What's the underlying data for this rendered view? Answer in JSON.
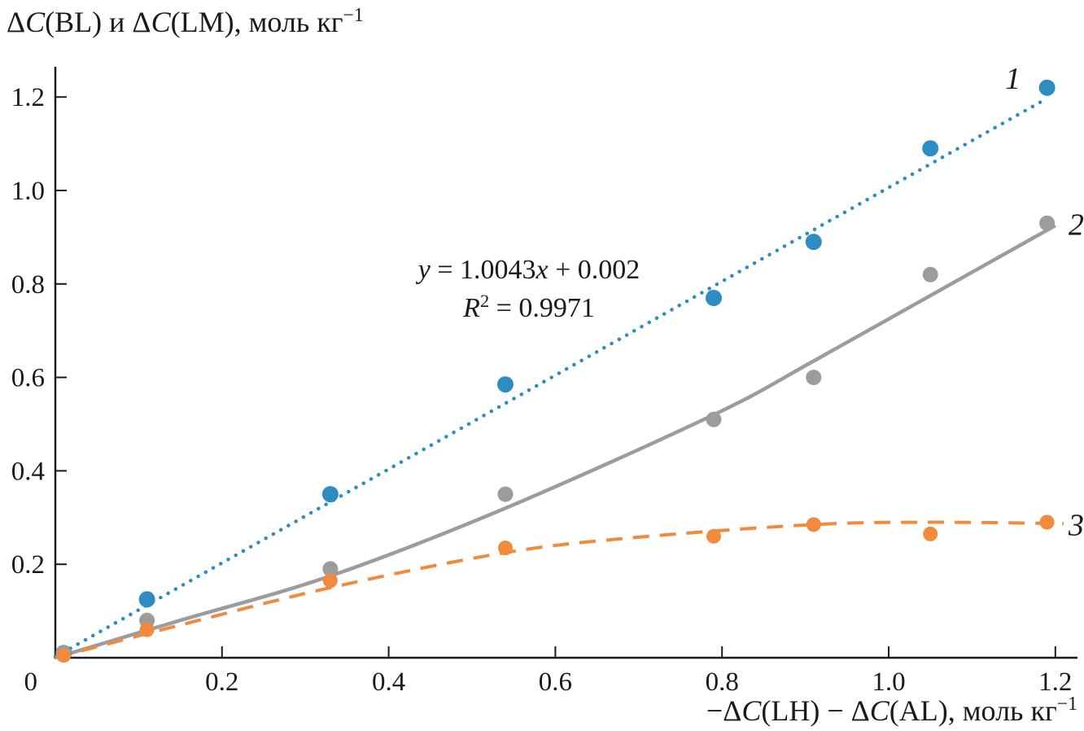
{
  "page": {
    "background": "#ffffff",
    "text_color": "#1a1a1a"
  },
  "chart_data": {
    "type": "scatter",
    "title": "",
    "ylabel": "ΔC(BL) и ΔC(LM), моль кг⁻¹",
    "xlabel": "−ΔC(LH) − ΔC(AL), моль кг⁻¹",
    "ylabel_segments": [
      {
        "t": "Δ",
        "s": "n"
      },
      {
        "t": "C",
        "s": "i"
      },
      {
        "t": "(BL) и Δ",
        "s": "n"
      },
      {
        "t": "C",
        "s": "i"
      },
      {
        "t": "(LM), моль кг",
        "s": "n"
      },
      {
        "t": "−1",
        "s": "sup"
      }
    ],
    "xlabel_segments": [
      {
        "t": "−Δ",
        "s": "n"
      },
      {
        "t": "C",
        "s": "i"
      },
      {
        "t": "(LH) − Δ",
        "s": "n"
      },
      {
        "t": "C",
        "s": "i"
      },
      {
        "t": "(AL), моль кг",
        "s": "n"
      },
      {
        "t": "−1",
        "s": "sup"
      }
    ],
    "xlim": [
      0,
      1.23
    ],
    "ylim": [
      0,
      1.28
    ],
    "x_ticks": [
      {
        "v": 0.2,
        "label": "0.2"
      },
      {
        "v": 0.4,
        "label": "0.4"
      },
      {
        "v": 0.6,
        "label": "0.6"
      },
      {
        "v": 0.8,
        "label": "0.8"
      },
      {
        "v": 1.0,
        "label": "1.0"
      },
      {
        "v": 1.2,
        "label": "1.2"
      }
    ],
    "y_ticks": [
      {
        "v": 0.2,
        "label": "0.2"
      },
      {
        "v": 0.4,
        "label": "0.4"
      },
      {
        "v": 0.6,
        "label": "0.6"
      },
      {
        "v": 0.8,
        "label": "0.8"
      },
      {
        "v": 1.0,
        "label": "1.0"
      },
      {
        "v": 1.2,
        "label": "1.2"
      }
    ],
    "origin_label": "0",
    "axis_color": "#1a1a1a",
    "grid": false,
    "legend_position": "inline-labels-right",
    "annotation": {
      "line1": "y = 1.0043x + 0.002",
      "line2": "R² = 0.9971",
      "line1_segments": [
        {
          "t": "y",
          "s": "i"
        },
        {
          "t": " = 1.0043",
          "s": "n"
        },
        {
          "t": "x",
          "s": "i"
        },
        {
          "t": " + 0.002",
          "s": "n"
        }
      ],
      "line2_segments": [
        {
          "t": "R",
          "s": "i"
        },
        {
          "t": "2",
          "s": "sup"
        },
        {
          "t": " = 0.9971",
          "s": "n"
        }
      ]
    },
    "series": [
      {
        "label": "1",
        "color": "#2d8dc3",
        "marker_radius": 10,
        "line_style": "dotted",
        "line_width": 4.5,
        "points": [
          [
            0.01,
            0.01
          ],
          [
            0.11,
            0.125
          ],
          [
            0.33,
            0.35
          ],
          [
            0.54,
            0.585
          ],
          [
            0.79,
            0.77
          ],
          [
            0.91,
            0.89
          ],
          [
            1.05,
            1.09
          ],
          [
            1.19,
            1.22
          ]
        ],
        "trend": {
          "kind": "linear",
          "slope": 1.0043,
          "intercept": 0.002,
          "x_start": 0.0,
          "x_end": 1.19
        },
        "label_pos": [
          1.149,
          1.218
        ]
      },
      {
        "label": "2",
        "color": "#9c9c9c",
        "marker_radius": 9.5,
        "line_style": "solid",
        "line_width": 4.5,
        "points": [
          [
            0.01,
            0.01
          ],
          [
            0.11,
            0.08
          ],
          [
            0.33,
            0.19
          ],
          [
            0.54,
            0.35
          ],
          [
            0.79,
            0.51
          ],
          [
            0.91,
            0.6
          ],
          [
            1.05,
            0.82
          ],
          [
            1.19,
            0.93
          ]
        ],
        "trend": {
          "kind": "smooth",
          "points": [
            [
              0,
              0
            ],
            [
              0.15,
              0.08
            ],
            [
              0.33,
              0.175
            ],
            [
              0.54,
              0.32
            ],
            [
              0.79,
              0.52
            ],
            [
              0.91,
              0.635
            ],
            [
              1.05,
              0.775
            ],
            [
              1.2,
              0.925
            ]
          ]
        },
        "label_pos": [
          1.225,
          0.905
        ]
      },
      {
        "label": "3",
        "color": "#f28a3d",
        "marker_radius": 9,
        "line_style": "dashed",
        "line_width": 4,
        "points": [
          [
            0.01,
            0.005
          ],
          [
            0.11,
            0.06
          ],
          [
            0.33,
            0.165
          ],
          [
            0.54,
            0.235
          ],
          [
            0.79,
            0.26
          ],
          [
            0.91,
            0.285
          ],
          [
            1.05,
            0.265
          ],
          [
            1.19,
            0.29
          ]
        ],
        "trend": {
          "kind": "smooth",
          "points": [
            [
              0,
              0
            ],
            [
              0.15,
              0.07
            ],
            [
              0.33,
              0.15
            ],
            [
              0.54,
              0.225
            ],
            [
              0.7,
              0.258
            ],
            [
              0.91,
              0.285
            ],
            [
              1.05,
              0.29
            ],
            [
              1.21,
              0.287
            ]
          ]
        },
        "label_pos": [
          1.225,
          0.262
        ]
      }
    ]
  }
}
